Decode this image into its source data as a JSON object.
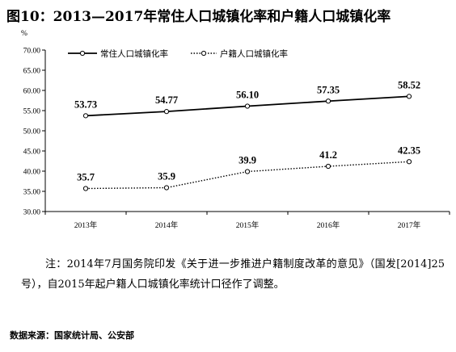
{
  "title": "图10：2013—2017年常住人口城镇化率和户籍人口城镇化率",
  "note": "注：2014年7月国务院印发《关于进一步推进户籍制度改革的意见》（国发[2014]25号），自2015年起户籍人口城镇化率统计口径作了调整。",
  "source": "数据来源：国家统计局、公安部",
  "chart_data": {
    "type": "line",
    "unit": "%",
    "categories": [
      "2013年",
      "2014年",
      "2015年",
      "2016年",
      "2017年"
    ],
    "series": [
      {
        "name": "常住人口城镇化率",
        "values": [
          53.73,
          54.77,
          56.1,
          57.35,
          58.52
        ],
        "labels": [
          "53.73",
          "54.77",
          "56.10",
          "57.35",
          "58.52"
        ],
        "style": "solid"
      },
      {
        "name": "户籍人口城镇化率",
        "values": [
          35.7,
          35.9,
          39.9,
          41.2,
          42.35
        ],
        "labels": [
          "35.7",
          "35.9",
          "39.9",
          "41.2",
          "42.35"
        ],
        "style": "dotted"
      }
    ],
    "ylim": [
      30,
      70
    ],
    "yticks": [
      "70.00",
      "65.00",
      "60.00",
      "55.00",
      "50.00",
      "45.00",
      "40.00",
      "35.00",
      "30.00"
    ],
    "ytick_values": [
      70,
      65,
      60,
      55,
      50,
      45,
      40,
      35,
      30
    ],
    "grid": false,
    "legend_position": "top-left"
  }
}
